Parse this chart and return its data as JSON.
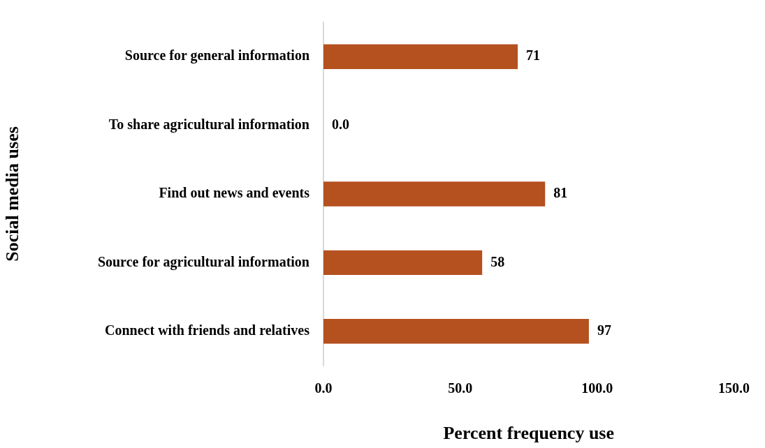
{
  "chart_data": {
    "type": "bar",
    "orientation": "horizontal",
    "xlabel": "Percent frequency use",
    "ylabel": "Social media uses",
    "categories": [
      "Source for general information",
      "To share agricultural information",
      "Find out news and events",
      "Source for agricultural information",
      "Connect with friends and relatives"
    ],
    "values": [
      71,
      0,
      81,
      58,
      97
    ],
    "value_labels": [
      "71",
      "0.0",
      "81",
      "58",
      "97"
    ],
    "color": "#b5501f",
    "xlim": [
      0,
      150
    ],
    "xticks": [
      {
        "value": 0,
        "label": "0.0"
      },
      {
        "value": 50,
        "label": "50.0"
      },
      {
        "value": 100,
        "label": "100.0"
      },
      {
        "value": 150,
        "label": "150.0"
      }
    ],
    "grid": false,
    "legend": false
  }
}
